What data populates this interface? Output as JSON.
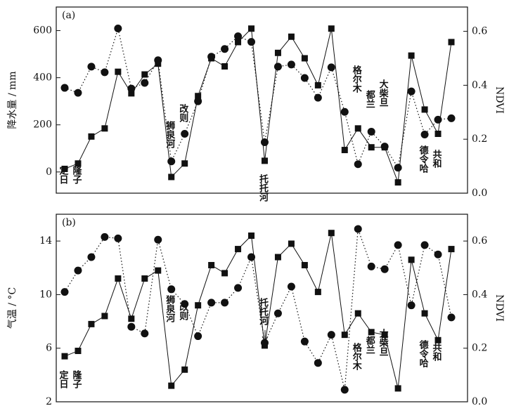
{
  "chart_data": [
    {
      "type": "line",
      "title": "(a)",
      "ylabel": "降水量 / mm",
      "y2label": "NDVI",
      "categories": [
        null,
        null,
        null,
        null,
        null,
        null,
        null,
        null,
        null,
        null,
        null,
        null,
        null,
        null,
        null,
        null,
        null,
        null,
        null,
        null,
        null,
        null,
        null,
        null,
        null,
        null,
        null,
        null,
        null,
        null
      ],
      "ylim": [
        -90,
        700
      ],
      "yticks": [
        0,
        200,
        400,
        600
      ],
      "y2lim": [
        0,
        0.69
      ],
      "y2ticks": [
        {
          "value": 0,
          "label": "0.0"
        },
        0.2,
        0.4,
        0.6
      ],
      "series": [
        {
          "axis": "y2",
          "marker": "square",
          "line": "solid",
          "color": "#111",
          "values": [
            0.09,
            0.11,
            0.21,
            0.24,
            0.45,
            0.37,
            0.44,
            0.48,
            0.06,
            0.11,
            0.36,
            0.5,
            0.47,
            0.56,
            0.61,
            0.12,
            0.52,
            0.58,
            0.5,
            0.4,
            0.61,
            0.16,
            0.24,
            0.17,
            0.17,
            0.04,
            0.51,
            0.31,
            0.22,
            0.56
          ]
        },
        {
          "axis": "y",
          "marker": "circle",
          "line": "dotted",
          "color": "#111",
          "values": [
            357,
            336,
            447,
            423,
            609,
            354,
            378,
            474,
            45,
            162,
            300,
            489,
            522,
            576,
            552,
            126,
            447,
            456,
            399,
            315,
            444,
            255,
            33,
            171,
            108,
            18,
            342,
            159,
            222,
            228
          ]
        }
      ],
      "annotations": [
        "定日",
        "隆子",
        "狮泉河",
        "改则",
        "托托河",
        "格尔木",
        "都兰",
        "大柴旦",
        "德令哈",
        "共和"
      ]
    },
    {
      "type": "line",
      "title": "(b)",
      "ylabel": "气温 / °C",
      "y2label": "NDVI",
      "categories": [
        null,
        null,
        null,
        null,
        null,
        null,
        null,
        null,
        null,
        null,
        null,
        null,
        null,
        null,
        null,
        null,
        null,
        null,
        null,
        null,
        null,
        null,
        null,
        null,
        null,
        null,
        null,
        null,
        null,
        null
      ],
      "ylim": [
        2,
        16
      ],
      "yticks": [
        2,
        6,
        10,
        14
      ],
      "y2lim": [
        0,
        0.7
      ],
      "y2ticks": [
        {
          "value": 0,
          "label": "0.0"
        },
        0.2,
        0.4,
        0.6
      ],
      "series": [
        {
          "axis": "y2",
          "marker": "square",
          "line": "solid",
          "color": "#111",
          "values": [
            0.17,
            0.19,
            0.29,
            0.32,
            0.46,
            0.31,
            0.46,
            0.49,
            0.06,
            0.12,
            0.36,
            0.51,
            0.48,
            0.57,
            0.62,
            0.21,
            0.54,
            0.59,
            0.51,
            0.41,
            0.63,
            0.25,
            0.33,
            0.26,
            0.25,
            0.05,
            0.53,
            0.33,
            0.23,
            0.57
          ]
        },
        {
          "axis": "y",
          "marker": "circle",
          "line": "dotted",
          "color": "#111",
          "values": [
            10.2,
            11.8,
            12.8,
            14.3,
            14.2,
            7.6,
            7.1,
            14.1,
            10.4,
            9.3,
            6.9,
            9.4,
            9.4,
            10.5,
            12.8,
            6.4,
            8.6,
            10.6,
            6.5,
            4.9,
            7.0,
            2.9,
            14.9,
            12.1,
            11.9,
            13.7,
            9.2,
            13.7,
            13.0,
            8.3
          ]
        }
      ],
      "annotations": [
        "定日",
        "隆子",
        "狮泉河",
        "改则",
        "托托河",
        "格尔木",
        "都兰",
        "大柴旦",
        "德令哈",
        "共和"
      ]
    }
  ]
}
